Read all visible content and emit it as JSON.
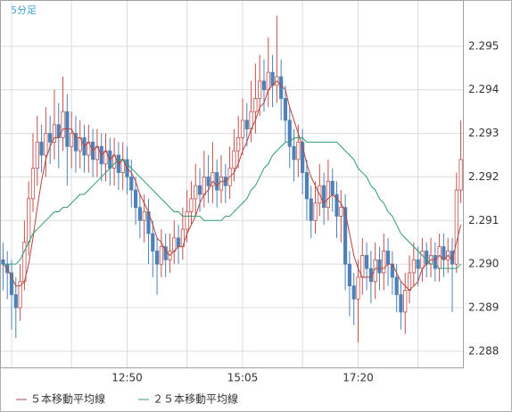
{
  "chart_data": {
    "type": "candlestick",
    "title": "5分足",
    "categories": [
      null,
      null,
      null,
      null,
      null,
      null,
      null,
      null,
      null,
      null,
      null,
      null,
      null,
      null,
      null,
      null,
      null,
      null,
      null,
      null,
      null,
      null,
      null,
      null,
      null,
      null,
      null,
      null,
      null,
      "12:50",
      null,
      null,
      null,
      null,
      null,
      null,
      null,
      null,
      null,
      null,
      null,
      null,
      null,
      null,
      null,
      null,
      null,
      null,
      null,
      null,
      null,
      null,
      null,
      null,
      null,
      null,
      "15:05",
      null,
      null,
      null,
      null,
      null,
      null,
      null,
      null,
      null,
      null,
      null,
      null,
      null,
      null,
      null,
      null,
      null,
      null,
      null,
      null,
      null,
      null,
      null,
      null,
      null,
      null,
      "17:20",
      null,
      null,
      null,
      null,
      null,
      null,
      null,
      null,
      null,
      null,
      null,
      null,
      null,
      null,
      null,
      null,
      null,
      null,
      null,
      null,
      null,
      null,
      null,
      null
    ],
    "open": [
      2.2901,
      2.29,
      2.2898,
      2.2893,
      2.289,
      2.2896,
      2.2905,
      2.2915,
      2.2922,
      2.2928,
      2.2925,
      2.293,
      2.2928,
      2.2932,
      2.2929,
      2.2935,
      2.2927,
      2.293,
      2.2926,
      2.2929,
      2.2925,
      2.2928,
      2.2924,
      2.2927,
      2.2923,
      2.2926,
      2.2922,
      2.2925,
      2.2921,
      2.2924,
      2.292,
      2.2917,
      2.2913,
      2.291,
      2.2912,
      2.2907,
      2.2903,
      2.29,
      2.2904,
      2.2901,
      2.2903,
      2.2906,
      2.2904,
      2.2908,
      2.2912,
      2.2915,
      2.2918,
      2.2916,
      2.292,
      2.2918,
      2.2921,
      2.2917,
      2.292,
      2.2918,
      2.2922,
      2.2926,
      2.2929,
      2.2933,
      2.2931,
      2.2935,
      2.2938,
      2.2942,
      2.294,
      2.2944,
      2.2941,
      2.2943,
      2.2938,
      2.2933,
      2.2927,
      2.2924,
      2.2928,
      2.2921,
      2.2915,
      2.291,
      2.2914,
      2.2918,
      2.2913,
      2.2919,
      2.2916,
      2.2911,
      2.2913,
      2.29,
      2.2895,
      2.2892,
      2.2897,
      2.2902,
      2.2899,
      2.2896,
      2.2901,
      2.2898,
      2.2903,
      2.29,
      2.2897,
      2.2893,
      2.2889,
      2.2894,
      2.2898,
      2.2901,
      2.2899,
      2.2903,
      2.29,
      2.2902,
      2.2899,
      2.2904,
      2.2901,
      2.2903,
      2.29,
      2.2917
    ],
    "high": [
      2.2905,
      2.2903,
      2.2901,
      2.2897,
      2.29,
      2.291,
      2.2919,
      2.293,
      2.2934,
      2.2932,
      2.2936,
      2.2934,
      2.294,
      2.2937,
      2.2943,
      2.2939,
      2.2935,
      2.2934,
      2.2933,
      2.2932,
      2.2932,
      2.2931,
      2.2931,
      2.293,
      2.293,
      2.2929,
      2.2929,
      2.2928,
      2.2928,
      2.2927,
      2.2924,
      2.292,
      2.2916,
      2.2916,
      2.2915,
      2.291,
      2.2906,
      2.2908,
      2.2907,
      2.2907,
      2.291,
      2.2909,
      2.2913,
      2.2917,
      2.2919,
      2.2923,
      2.2922,
      2.2926,
      2.2925,
      2.2928,
      2.2924,
      2.2925,
      2.2923,
      2.2927,
      2.2931,
      2.2934,
      2.2938,
      2.2937,
      2.2942,
      2.2946,
      2.2948,
      2.2947,
      2.2952,
      2.2948,
      2.2957,
      2.2947,
      2.2941,
      2.2936,
      2.2931,
      2.2932,
      2.2931,
      2.2924,
      2.2918,
      2.2919,
      2.2923,
      2.2921,
      2.2924,
      2.2922,
      2.2919,
      2.2917,
      2.2916,
      2.2903,
      2.2898,
      2.2901,
      2.2906,
      2.2905,
      2.2903,
      2.2905,
      2.2904,
      2.2907,
      2.2906,
      2.2903,
      2.29,
      2.2896,
      2.2898,
      2.2902,
      2.2905,
      2.2904,
      2.2906,
      2.2905,
      2.2906,
      2.2905,
      2.2907,
      2.2907,
      2.2906,
      2.2906,
      2.2921,
      2.2933
    ],
    "low": [
      2.2894,
      2.2892,
      2.2885,
      2.2883,
      2.2887,
      2.2894,
      2.2902,
      2.2912,
      2.2918,
      2.2921,
      2.292,
      2.2923,
      2.2924,
      2.2922,
      2.2926,
      2.2918,
      2.2922,
      2.2921,
      2.2922,
      2.2921,
      2.2921,
      2.292,
      2.292,
      2.2919,
      2.2919,
      2.2918,
      2.2918,
      2.2917,
      2.2917,
      2.2916,
      2.2913,
      2.2909,
      2.2906,
      2.2905,
      2.29,
      2.2897,
      2.2893,
      2.2897,
      2.2897,
      2.2898,
      2.29,
      2.29,
      2.2901,
      2.2905,
      2.2909,
      2.2911,
      2.2912,
      2.2913,
      2.2914,
      2.2914,
      2.2913,
      2.2914,
      2.2914,
      2.2915,
      2.2919,
      2.2922,
      2.2925,
      2.2927,
      2.2928,
      2.293,
      2.2934,
      2.2935,
      2.2936,
      2.2936,
      2.2937,
      2.2933,
      2.2928,
      2.2922,
      2.2919,
      2.292,
      2.2916,
      2.291,
      2.2906,
      2.2907,
      2.2911,
      2.2909,
      2.291,
      2.2912,
      2.2906,
      2.2905,
      2.2894,
      2.2888,
      2.2886,
      2.2882,
      2.2893,
      2.2894,
      2.2891,
      2.2892,
      2.2894,
      2.2894,
      2.2895,
      2.2893,
      2.2889,
      2.2885,
      2.2884,
      2.2891,
      2.2895,
      2.2895,
      2.2896,
      2.2897,
      2.2897,
      2.2896,
      2.2896,
      2.2897,
      2.2898,
      2.2889,
      2.2898,
      2.2914
    ],
    "close": [
      2.29,
      2.2898,
      2.2893,
      2.289,
      2.2896,
      2.2905,
      2.2915,
      2.2922,
      2.2928,
      2.2925,
      2.293,
      2.2928,
      2.2932,
      2.2929,
      2.2935,
      2.2927,
      2.293,
      2.2926,
      2.2929,
      2.2925,
      2.2928,
      2.2924,
      2.2927,
      2.2923,
      2.2926,
      2.2922,
      2.2925,
      2.2921,
      2.2924,
      2.292,
      2.2917,
      2.2913,
      2.291,
      2.2912,
      2.2907,
      2.2903,
      2.29,
      2.2904,
      2.2901,
      2.2903,
      2.2906,
      2.2904,
      2.2908,
      2.2912,
      2.2915,
      2.2918,
      2.2916,
      2.292,
      2.2918,
      2.2921,
      2.2917,
      2.292,
      2.2918,
      2.2922,
      2.2926,
      2.2929,
      2.2933,
      2.2931,
      2.2935,
      2.2938,
      2.2942,
      2.294,
      2.2944,
      2.2941,
      2.2943,
      2.2938,
      2.2933,
      2.2927,
      2.2924,
      2.2928,
      2.2921,
      2.2915,
      2.291,
      2.2914,
      2.2918,
      2.2913,
      2.2919,
      2.2916,
      2.2911,
      2.2913,
      2.29,
      2.2895,
      2.2892,
      2.2897,
      2.2902,
      2.2899,
      2.2896,
      2.2901,
      2.2898,
      2.2903,
      2.29,
      2.2897,
      2.2893,
      2.2889,
      2.2894,
      2.2898,
      2.2901,
      2.2899,
      2.2903,
      2.29,
      2.2902,
      2.2899,
      2.2904,
      2.2901,
      2.2903,
      2.29,
      2.2917,
      2.2924
    ],
    "up_color": "#c0504d",
    "down_color": "#4f81b8",
    "series": [
      {
        "name": "５本移動平均線",
        "color": "#b5443f",
        "values": [
          2.29,
          2.2899,
          2.2897,
          2.2895,
          2.2895,
          2.2896,
          2.29,
          2.2906,
          2.2913,
          2.2919,
          2.2924,
          2.2927,
          2.2929,
          2.2929,
          2.2931,
          2.2931,
          2.2931,
          2.2929,
          2.2929,
          2.2927,
          2.2928,
          2.2926,
          2.2927,
          2.2925,
          2.2926,
          2.2924,
          2.2925,
          2.2923,
          2.2924,
          2.2922,
          2.2921,
          2.2919,
          2.2916,
          2.2914,
          2.2912,
          2.2909,
          2.2906,
          2.2905,
          2.2903,
          2.2902,
          2.2903,
          2.2904,
          2.2904,
          2.2907,
          2.2909,
          2.2911,
          2.2914,
          2.2916,
          2.2917,
          2.2919,
          2.2918,
          2.2919,
          2.2919,
          2.292,
          2.2921,
          2.2923,
          2.2926,
          2.2928,
          2.2931,
          2.2933,
          2.2936,
          2.2937,
          2.294,
          2.2941,
          2.2942,
          2.2941,
          2.294,
          2.2936,
          2.2933,
          2.293,
          2.2927,
          2.2923,
          2.292,
          2.2918,
          2.2916,
          2.2914,
          2.2915,
          2.2916,
          2.2915,
          2.2914,
          2.2912,
          2.2907,
          2.2902,
          2.2899,
          2.2897,
          2.2897,
          2.2897,
          2.2899,
          2.2899,
          2.2899,
          2.29,
          2.29,
          2.2898,
          2.2896,
          2.2895,
          2.2894,
          2.2895,
          2.2896,
          2.2899,
          2.29,
          2.2901,
          2.2901,
          2.2902,
          2.2901,
          2.2902,
          2.2901,
          2.2905,
          2.2909
        ]
      },
      {
        "name": "２５本移動平均線",
        "color": "#2e9c72",
        "values": [
          2.29,
          2.29,
          2.29,
          2.29,
          2.2901,
          2.2903,
          2.2905,
          2.2907,
          2.2908,
          2.2909,
          2.291,
          2.2911,
          2.2912,
          2.2912,
          2.2913,
          2.2913,
          2.2914,
          2.2915,
          2.2916,
          2.2916,
          2.2917,
          2.2918,
          2.2919,
          2.292,
          2.2921,
          2.2922,
          2.2923,
          2.2924,
          2.2924,
          2.2923,
          2.2922,
          2.2921,
          2.292,
          2.2919,
          2.2918,
          2.2917,
          2.2916,
          2.2915,
          2.2914,
          2.2913,
          2.2912,
          2.2912,
          2.2911,
          2.2911,
          2.2911,
          2.2911,
          2.2911,
          2.291,
          2.291,
          2.291,
          2.291,
          2.291,
          2.2911,
          2.2911,
          2.2912,
          2.2913,
          2.2914,
          2.2915,
          2.2917,
          2.2918,
          2.292,
          2.2922,
          2.2923,
          2.2925,
          2.2926,
          2.2927,
          2.2928,
          2.2928,
          2.2929,
          2.2929,
          2.2929,
          2.2928,
          2.2928,
          2.2928,
          2.2928,
          2.2928,
          2.2928,
          2.2928,
          2.2928,
          2.2927,
          2.2926,
          2.2925,
          2.2924,
          2.2922,
          2.2921,
          2.292,
          2.2918,
          2.2917,
          2.2915,
          2.2914,
          2.2912,
          2.2911,
          2.2909,
          2.2907,
          2.2906,
          2.2905,
          2.2904,
          2.2903,
          2.2902,
          2.2901,
          2.29,
          2.29,
          2.2899,
          2.2899,
          2.2899,
          2.2899,
          2.2899,
          2.29
        ]
      }
    ],
    "ylim": [
      2.28763,
      2.29604
    ],
    "yticks": [
      2.288,
      2.289,
      {
        "value": 2.29,
        "label": "2.290"
      },
      2.291,
      2.292,
      2.293,
      2.294,
      2.295
    ],
    "grid": true,
    "legend": "bottom-left"
  }
}
